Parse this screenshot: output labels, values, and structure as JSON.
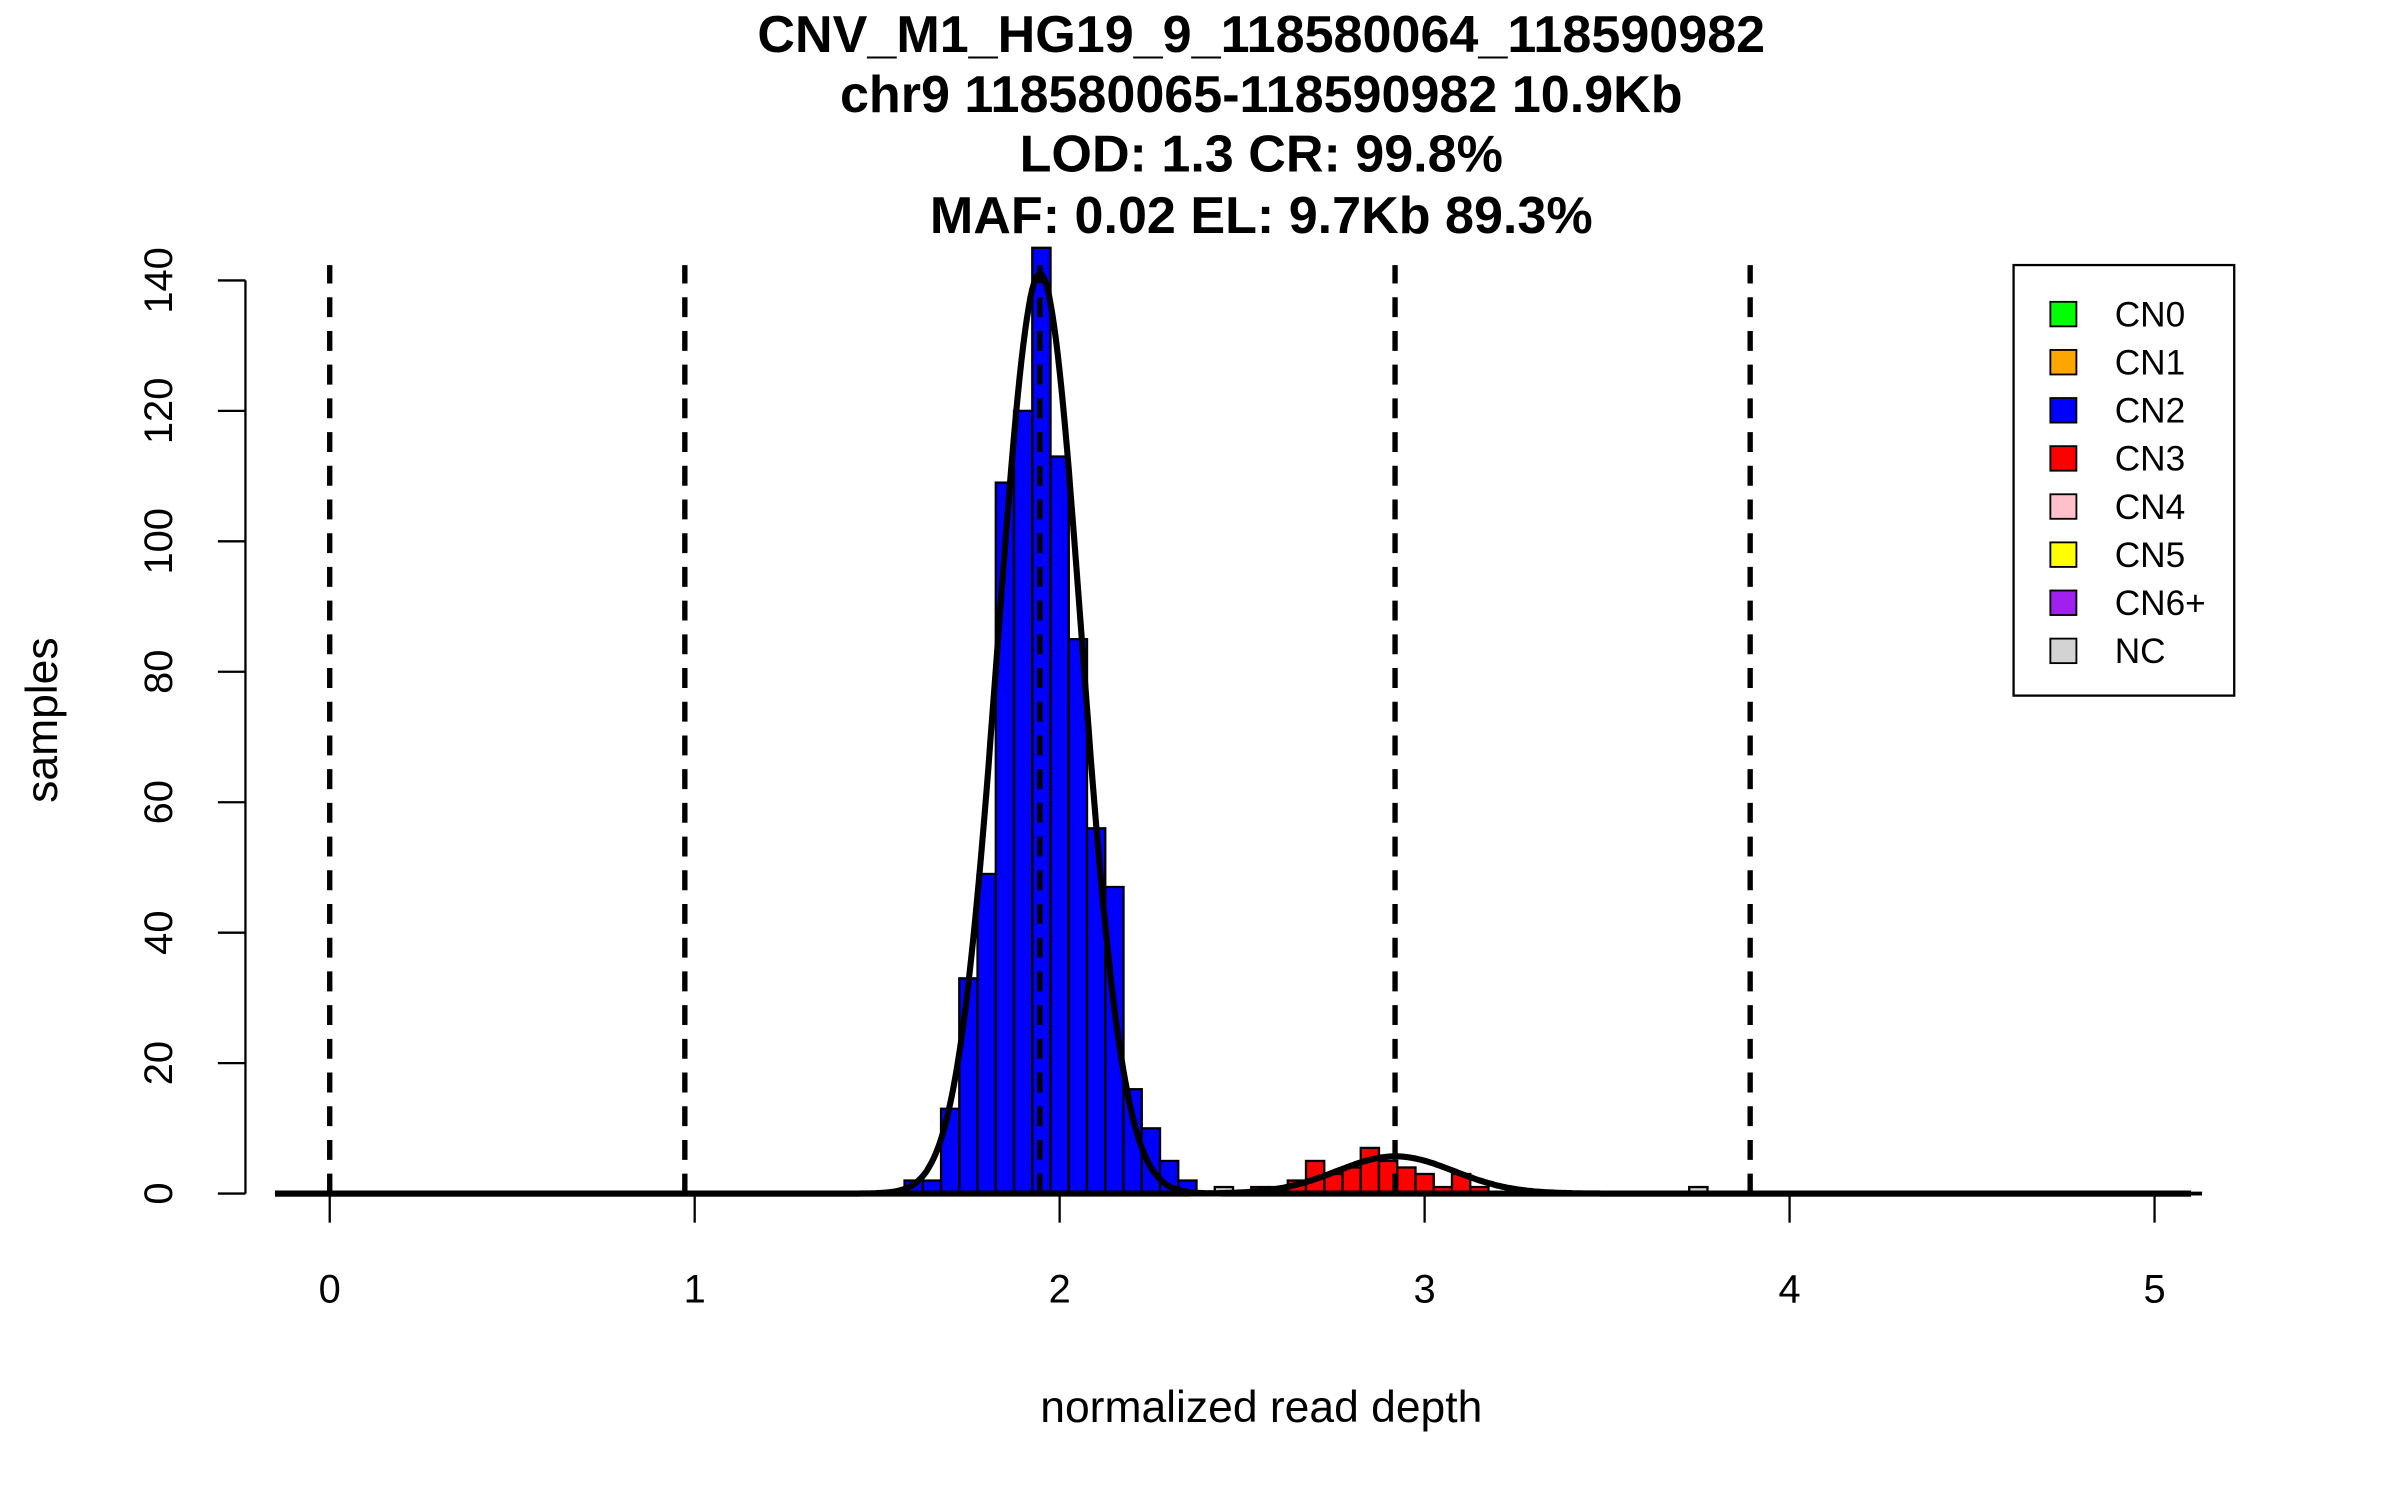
{
  "chart_data": {
    "type": "bar",
    "title_lines": [
      "CNV_M1_HG19_9_118580064_118590982",
      "chr9 118580065-118590982 10.9Kb",
      "LOD: 1.3 CR: 99.8%",
      "MAF: 0.02 EL: 9.7Kb 89.3%"
    ],
    "xlabel": "normalized read depth",
    "ylabel": "samples",
    "xlim": [
      -0.15,
      5.1
    ],
    "ylim": [
      0,
      140
    ],
    "xticks": [
      0,
      1,
      2,
      3,
      4,
      5
    ],
    "yticks": [
      0,
      20,
      40,
      60,
      80,
      100,
      120,
      140
    ],
    "bin_width": 0.05,
    "series": [
      {
        "name": "CN2",
        "color": "#0000ff",
        "bin_starts": [
          1.575,
          1.625,
          1.675,
          1.725,
          1.775,
          1.825,
          1.875,
          1.925,
          1.975,
          2.025,
          2.075,
          2.125,
          2.175,
          2.225,
          2.275,
          2.325
        ],
        "values": [
          2,
          2,
          13,
          33,
          49,
          109,
          120,
          145,
          113,
          85,
          56,
          47,
          16,
          10,
          5,
          2
        ]
      },
      {
        "name": "CN3",
        "color": "#ff0000",
        "bin_starts": [
          2.525,
          2.575,
          2.625,
          2.675,
          2.725,
          2.775,
          2.825,
          2.875,
          2.925,
          2.975,
          3.025,
          3.075,
          3.125
        ],
        "values": [
          1,
          1,
          2,
          5,
          3,
          4,
          7,
          5,
          4,
          3,
          1,
          3,
          1
        ]
      },
      {
        "name": "NC",
        "color": "#d3d3d3",
        "bin_starts": [
          2.425,
          3.725
        ],
        "values": [
          1,
          1
        ]
      }
    ],
    "zero_count_ranges": [
      [
        -0.15,
        0.15
      ],
      [
        0.65,
        1.3
      ],
      [
        3.9,
        4.55
      ]
    ],
    "fitted_curves": [
      {
        "name": "CN2 fit",
        "mean": 1.946,
        "sd": 0.114,
        "peak": 141
      },
      {
        "name": "CN3 fit",
        "mean": 2.92,
        "sd": 0.16,
        "peak": 5.7
      }
    ],
    "copy_number_means": [
      0,
      0.973,
      1.946,
      2.919,
      3.892
    ],
    "legend": {
      "position": "top-right",
      "entries": [
        {
          "label": "CN0",
          "color": "#00ff00"
        },
        {
          "label": "CN1",
          "color": "#ffa500"
        },
        {
          "label": "CN2",
          "color": "#0000ff"
        },
        {
          "label": "CN3",
          "color": "#ff0000"
        },
        {
          "label": "CN4",
          "color": "#ffc0cb"
        },
        {
          "label": "CN5",
          "color": "#ffff00"
        },
        {
          "label": "CN6+",
          "color": "#a020f0"
        },
        {
          "label": "NC",
          "color": "#d3d3d3"
        }
      ]
    }
  }
}
